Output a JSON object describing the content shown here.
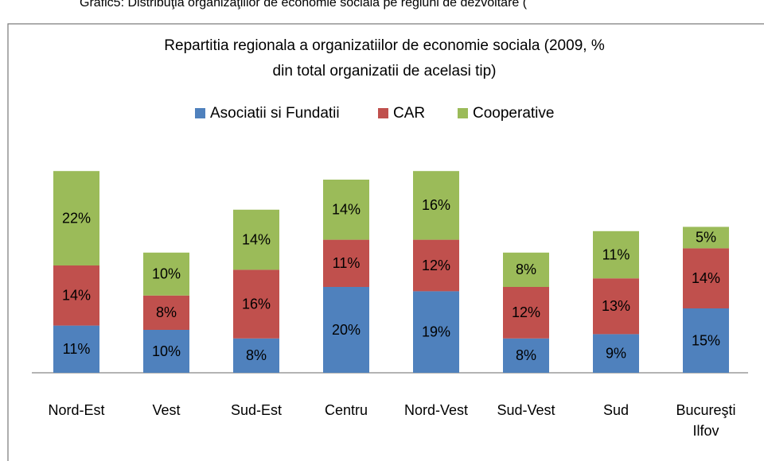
{
  "caption": "Grafic5: Distribuţia organizaţiilor de economie socială pe regiuni de dezvoltare (",
  "chart_data": {
    "type": "stacked_bar",
    "title": "Repartitia regionala a organizatiilor de economie sociala (2009, % din total organizatii de acelasi tip)",
    "categories": [
      "Nord-Est",
      "Vest",
      "Sud-Est",
      "Centru",
      "Nord-Vest",
      "Sud-Vest",
      "Sud",
      "Bucureşti Ilfov"
    ],
    "series": [
      {
        "name": "Asociatii si Fundatii",
        "color": "#4f81bd",
        "values": [
          11,
          10,
          8,
          20,
          19,
          8,
          9,
          15
        ],
        "value_labels": [
          "11%",
          "10%",
          "8%",
          "20%",
          "19%",
          "8%",
          "9%",
          "15%"
        ]
      },
      {
        "name": "CAR",
        "color": "#c0504d",
        "values": [
          14,
          8,
          16,
          11,
          12,
          12,
          13,
          14
        ],
        "value_labels": [
          "14%",
          "8%",
          "16%",
          "11%",
          "12%",
          "12%",
          "13%",
          "14%"
        ]
      },
      {
        "name": "Cooperative",
        "color": "#9bbb59",
        "values": [
          22,
          10,
          14,
          14,
          16,
          8,
          11,
          5
        ],
        "value_labels": [
          "22%",
          "10%",
          "14%",
          "14%",
          "16%",
          "8%",
          "11%",
          "5%"
        ]
      }
    ],
    "legend": "top"
  }
}
